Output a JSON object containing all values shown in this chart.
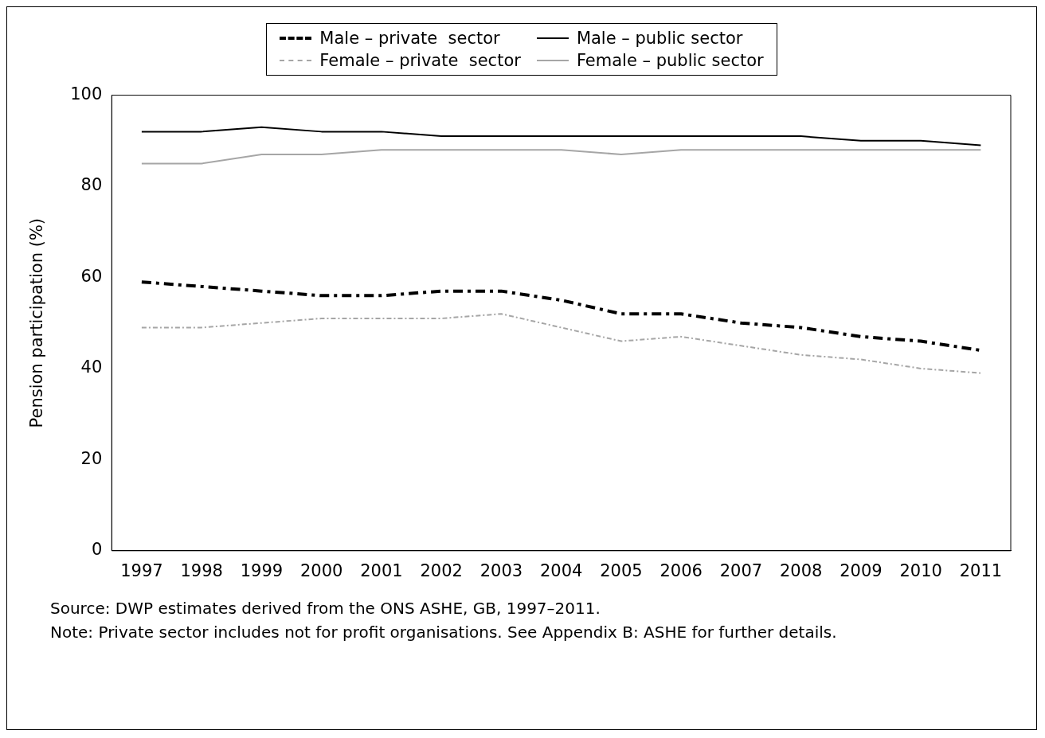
{
  "chart_data": {
    "type": "line",
    "ylabel": "Pension participation (%)",
    "categories": [
      "1997",
      "1998",
      "1999",
      "2000",
      "2001",
      "2002",
      "2003",
      "2004",
      "2005",
      "2006",
      "2007",
      "2008",
      "2009",
      "2010",
      "2011"
    ],
    "series": [
      {
        "name": "Male – private  sector",
        "color": "#000000",
        "line_style": "dashed",
        "values": [
          59,
          58,
          57,
          56,
          56,
          57,
          57,
          55,
          52,
          52,
          50,
          49,
          47,
          46,
          44
        ]
      },
      {
        "name": "Male – public sector",
        "color": "#000000",
        "line_style": "solid",
        "values": [
          92,
          92,
          93,
          92,
          92,
          91,
          91,
          91,
          91,
          91,
          91,
          91,
          90,
          90,
          89
        ]
      },
      {
        "name": "Female – private  sector",
        "color": "#a6a6a6",
        "line_style": "dashed",
        "values": [
          49,
          49,
          50,
          51,
          51,
          51,
          52,
          49,
          46,
          47,
          45,
          43,
          42,
          40,
          39
        ]
      },
      {
        "name": "Female – public sector",
        "color": "#a6a6a6",
        "line_style": "solid",
        "values": [
          85,
          85,
          87,
          87,
          88,
          88,
          88,
          88,
          87,
          88,
          88,
          88,
          88,
          88,
          88
        ]
      }
    ],
    "ylim": [
      0,
      100
    ],
    "yticks": [
      0,
      20,
      40,
      60,
      80,
      100
    ],
    "grid": false,
    "legend": "top",
    "marker": "none",
    "annotations": [
      "Source: DWP estimates derived from the ONS ASHE, GB, 1997–2011.",
      "Note: Private sector includes not for profit organisations. See Appendix B: ASHE for further details."
    ]
  }
}
